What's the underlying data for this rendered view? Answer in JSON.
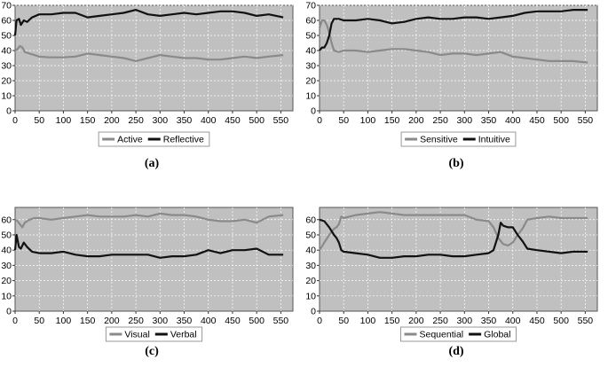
{
  "chart_data": [
    {
      "type": "line",
      "caption": "(a)",
      "xlim": [
        0,
        575
      ],
      "ylim": [
        0,
        70
      ],
      "xticks": [
        0,
        50,
        100,
        150,
        200,
        250,
        300,
        350,
        400,
        450,
        500,
        550
      ],
      "yticks": [
        0,
        10,
        20,
        30,
        40,
        50,
        60,
        70
      ],
      "grid": true,
      "legend_position": "bottom",
      "series": [
        {
          "name": "Active",
          "color": "#8a8a8a",
          "points": [
            [
              0,
              40
            ],
            [
              5,
              41
            ],
            [
              10,
              43
            ],
            [
              15,
              42
            ],
            [
              20,
              39
            ],
            [
              30,
              38
            ],
            [
              40,
              37
            ],
            [
              50,
              36
            ],
            [
              70,
              35.5
            ],
            [
              100,
              35.5
            ],
            [
              125,
              36
            ],
            [
              150,
              38
            ],
            [
              175,
              37
            ],
            [
              200,
              36
            ],
            [
              225,
              35
            ],
            [
              250,
              33
            ],
            [
              275,
              35
            ],
            [
              300,
              37
            ],
            [
              325,
              36
            ],
            [
              350,
              35
            ],
            [
              375,
              35
            ],
            [
              400,
              34
            ],
            [
              425,
              34
            ],
            [
              450,
              35
            ],
            [
              475,
              36
            ],
            [
              500,
              35
            ],
            [
              525,
              36
            ],
            [
              555,
              37
            ]
          ]
        },
        {
          "name": "Reflective",
          "color": "#111111",
          "points": [
            [
              0,
              50
            ],
            [
              3,
              60
            ],
            [
              8,
              61
            ],
            [
              12,
              57
            ],
            [
              18,
              60
            ],
            [
              25,
              59
            ],
            [
              35,
              62
            ],
            [
              50,
              64
            ],
            [
              75,
              64
            ],
            [
              100,
              65
            ],
            [
              125,
              65
            ],
            [
              150,
              62
            ],
            [
              175,
              63
            ],
            [
              200,
              64
            ],
            [
              225,
              65
            ],
            [
              250,
              67
            ],
            [
              275,
              64
            ],
            [
              300,
              63
            ],
            [
              325,
              64
            ],
            [
              350,
              65
            ],
            [
              375,
              64
            ],
            [
              400,
              65
            ],
            [
              425,
              66
            ],
            [
              450,
              66
            ],
            [
              475,
              65
            ],
            [
              500,
              63
            ],
            [
              525,
              64
            ],
            [
              555,
              62
            ]
          ]
        }
      ]
    },
    {
      "type": "line",
      "caption": "(b)",
      "xlim": [
        0,
        575
      ],
      "ylim": [
        0,
        70
      ],
      "xticks": [
        0,
        50,
        100,
        150,
        200,
        250,
        300,
        350,
        400,
        450,
        500,
        550
      ],
      "yticks": [
        0,
        10,
        20,
        30,
        40,
        50,
        60,
        70
      ],
      "grid": true,
      "legend_position": "bottom",
      "series": [
        {
          "name": "Sensitive",
          "color": "#8a8a8a",
          "points": [
            [
              0,
              55
            ],
            [
              5,
              60
            ],
            [
              10,
              60
            ],
            [
              15,
              57
            ],
            [
              20,
              52
            ],
            [
              25,
              45
            ],
            [
              30,
              40
            ],
            [
              40,
              39
            ],
            [
              50,
              40
            ],
            [
              75,
              40
            ],
            [
              100,
              39
            ],
            [
              125,
              40
            ],
            [
              150,
              41
            ],
            [
              175,
              41
            ],
            [
              200,
              40
            ],
            [
              225,
              39
            ],
            [
              250,
              37
            ],
            [
              275,
              38
            ],
            [
              300,
              38
            ],
            [
              325,
              37
            ],
            [
              350,
              38
            ],
            [
              375,
              39
            ],
            [
              400,
              36
            ],
            [
              425,
              35
            ],
            [
              450,
              34
            ],
            [
              475,
              33
            ],
            [
              500,
              33
            ],
            [
              525,
              33
            ],
            [
              555,
              32
            ]
          ]
        },
        {
          "name": "Intuitive",
          "color": "#111111",
          "points": [
            [
              0,
              40
            ],
            [
              5,
              42
            ],
            [
              10,
              42
            ],
            [
              15,
              45
            ],
            [
              20,
              50
            ],
            [
              25,
              58
            ],
            [
              30,
              61
            ],
            [
              40,
              61
            ],
            [
              50,
              60
            ],
            [
              75,
              60
            ],
            [
              100,
              61
            ],
            [
              125,
              60
            ],
            [
              150,
              58
            ],
            [
              175,
              59
            ],
            [
              200,
              61
            ],
            [
              225,
              62
            ],
            [
              250,
              61
            ],
            [
              275,
              61
            ],
            [
              300,
              62
            ],
            [
              325,
              62
            ],
            [
              350,
              61
            ],
            [
              375,
              62
            ],
            [
              400,
              63
            ],
            [
              425,
              65
            ],
            [
              450,
              66
            ],
            [
              475,
              66
            ],
            [
              500,
              66
            ],
            [
              525,
              67
            ],
            [
              555,
              67
            ]
          ]
        }
      ]
    },
    {
      "type": "line",
      "caption": "(c)",
      "xlim": [
        0,
        575
      ],
      "ylim": [
        0,
        68
      ],
      "xticks": [
        0,
        50,
        100,
        150,
        200,
        250,
        300,
        350,
        400,
        450,
        500,
        550
      ],
      "yticks": [
        0,
        10,
        20,
        30,
        40,
        50,
        60
      ],
      "grid": true,
      "legend_position": "bottom",
      "series": [
        {
          "name": "Visual",
          "color": "#8a8a8a",
          "points": [
            [
              0,
              60
            ],
            [
              5,
              59
            ],
            [
              10,
              57
            ],
            [
              15,
              55
            ],
            [
              20,
              58
            ],
            [
              30,
              60
            ],
            [
              40,
              61
            ],
            [
              50,
              61
            ],
            [
              75,
              60
            ],
            [
              100,
              61
            ],
            [
              125,
              62
            ],
            [
              150,
              63
            ],
            [
              175,
              62
            ],
            [
              200,
              62
            ],
            [
              225,
              62
            ],
            [
              250,
              63
            ],
            [
              275,
              62
            ],
            [
              300,
              64
            ],
            [
              325,
              63
            ],
            [
              350,
              63
            ],
            [
              375,
              62
            ],
            [
              400,
              60
            ],
            [
              425,
              59
            ],
            [
              450,
              59
            ],
            [
              475,
              60
            ],
            [
              500,
              58
            ],
            [
              525,
              62
            ],
            [
              555,
              63
            ]
          ]
        },
        {
          "name": "Verbal",
          "color": "#111111",
          "points": [
            [
              0,
              40
            ],
            [
              3,
              50
            ],
            [
              8,
              42
            ],
            [
              12,
              41
            ],
            [
              18,
              45
            ],
            [
              25,
              42
            ],
            [
              35,
              39
            ],
            [
              50,
              38
            ],
            [
              75,
              38
            ],
            [
              100,
              39
            ],
            [
              125,
              37
            ],
            [
              150,
              36
            ],
            [
              175,
              36
            ],
            [
              200,
              37
            ],
            [
              225,
              37
            ],
            [
              250,
              37
            ],
            [
              275,
              37
            ],
            [
              300,
              35
            ],
            [
              325,
              36
            ],
            [
              350,
              36
            ],
            [
              375,
              37
            ],
            [
              400,
              40
            ],
            [
              425,
              38
            ],
            [
              450,
              40
            ],
            [
              475,
              40
            ],
            [
              500,
              41
            ],
            [
              525,
              37
            ],
            [
              555,
              37
            ]
          ]
        }
      ]
    },
    {
      "type": "line",
      "caption": "(d)",
      "xlim": [
        0,
        575
      ],
      "ylim": [
        0,
        68
      ],
      "xticks": [
        0,
        50,
        100,
        150,
        200,
        250,
        300,
        350,
        400,
        450,
        500,
        550
      ],
      "yticks": [
        0,
        10,
        20,
        30,
        40,
        50,
        60
      ],
      "grid": true,
      "legend_position": "bottom",
      "series": [
        {
          "name": "Sequential",
          "color": "#8a8a8a",
          "points": [
            [
              0,
              40
            ],
            [
              10,
              45
            ],
            [
              20,
              50
            ],
            [
              30,
              54
            ],
            [
              35,
              55
            ],
            [
              40,
              57
            ],
            [
              45,
              62
            ],
            [
              50,
              61
            ],
            [
              75,
              63
            ],
            [
              100,
              64
            ],
            [
              125,
              65
            ],
            [
              150,
              64
            ],
            [
              175,
              63
            ],
            [
              200,
              63
            ],
            [
              225,
              63
            ],
            [
              250,
              63
            ],
            [
              275,
              63
            ],
            [
              300,
              63
            ],
            [
              325,
              60
            ],
            [
              350,
              59
            ],
            [
              360,
              55
            ],
            [
              370,
              48
            ],
            [
              380,
              44
            ],
            [
              390,
              43
            ],
            [
              400,
              45
            ],
            [
              410,
              50
            ],
            [
              420,
              54
            ],
            [
              430,
              60
            ],
            [
              450,
              61
            ],
            [
              475,
              62
            ],
            [
              500,
              61
            ],
            [
              525,
              61
            ],
            [
              555,
              61
            ]
          ]
        },
        {
          "name": "Global",
          "color": "#111111",
          "points": [
            [
              0,
              60
            ],
            [
              10,
              59
            ],
            [
              20,
              55
            ],
            [
              30,
              50
            ],
            [
              35,
              48
            ],
            [
              40,
              45
            ],
            [
              45,
              40
            ],
            [
              50,
              39
            ],
            [
              75,
              38
            ],
            [
              100,
              37
            ],
            [
              125,
              35
            ],
            [
              150,
              35
            ],
            [
              175,
              36
            ],
            [
              200,
              36
            ],
            [
              225,
              37
            ],
            [
              250,
              37
            ],
            [
              275,
              36
            ],
            [
              300,
              36
            ],
            [
              325,
              37
            ],
            [
              350,
              38
            ],
            [
              360,
              40
            ],
            [
              370,
              50
            ],
            [
              375,
              58
            ],
            [
              380,
              56
            ],
            [
              390,
              55
            ],
            [
              400,
              55
            ],
            [
              410,
              50
            ],
            [
              420,
              46
            ],
            [
              430,
              41
            ],
            [
              450,
              40
            ],
            [
              475,
              39
            ],
            [
              500,
              38
            ],
            [
              525,
              39
            ],
            [
              555,
              39
            ]
          ]
        }
      ]
    }
  ]
}
